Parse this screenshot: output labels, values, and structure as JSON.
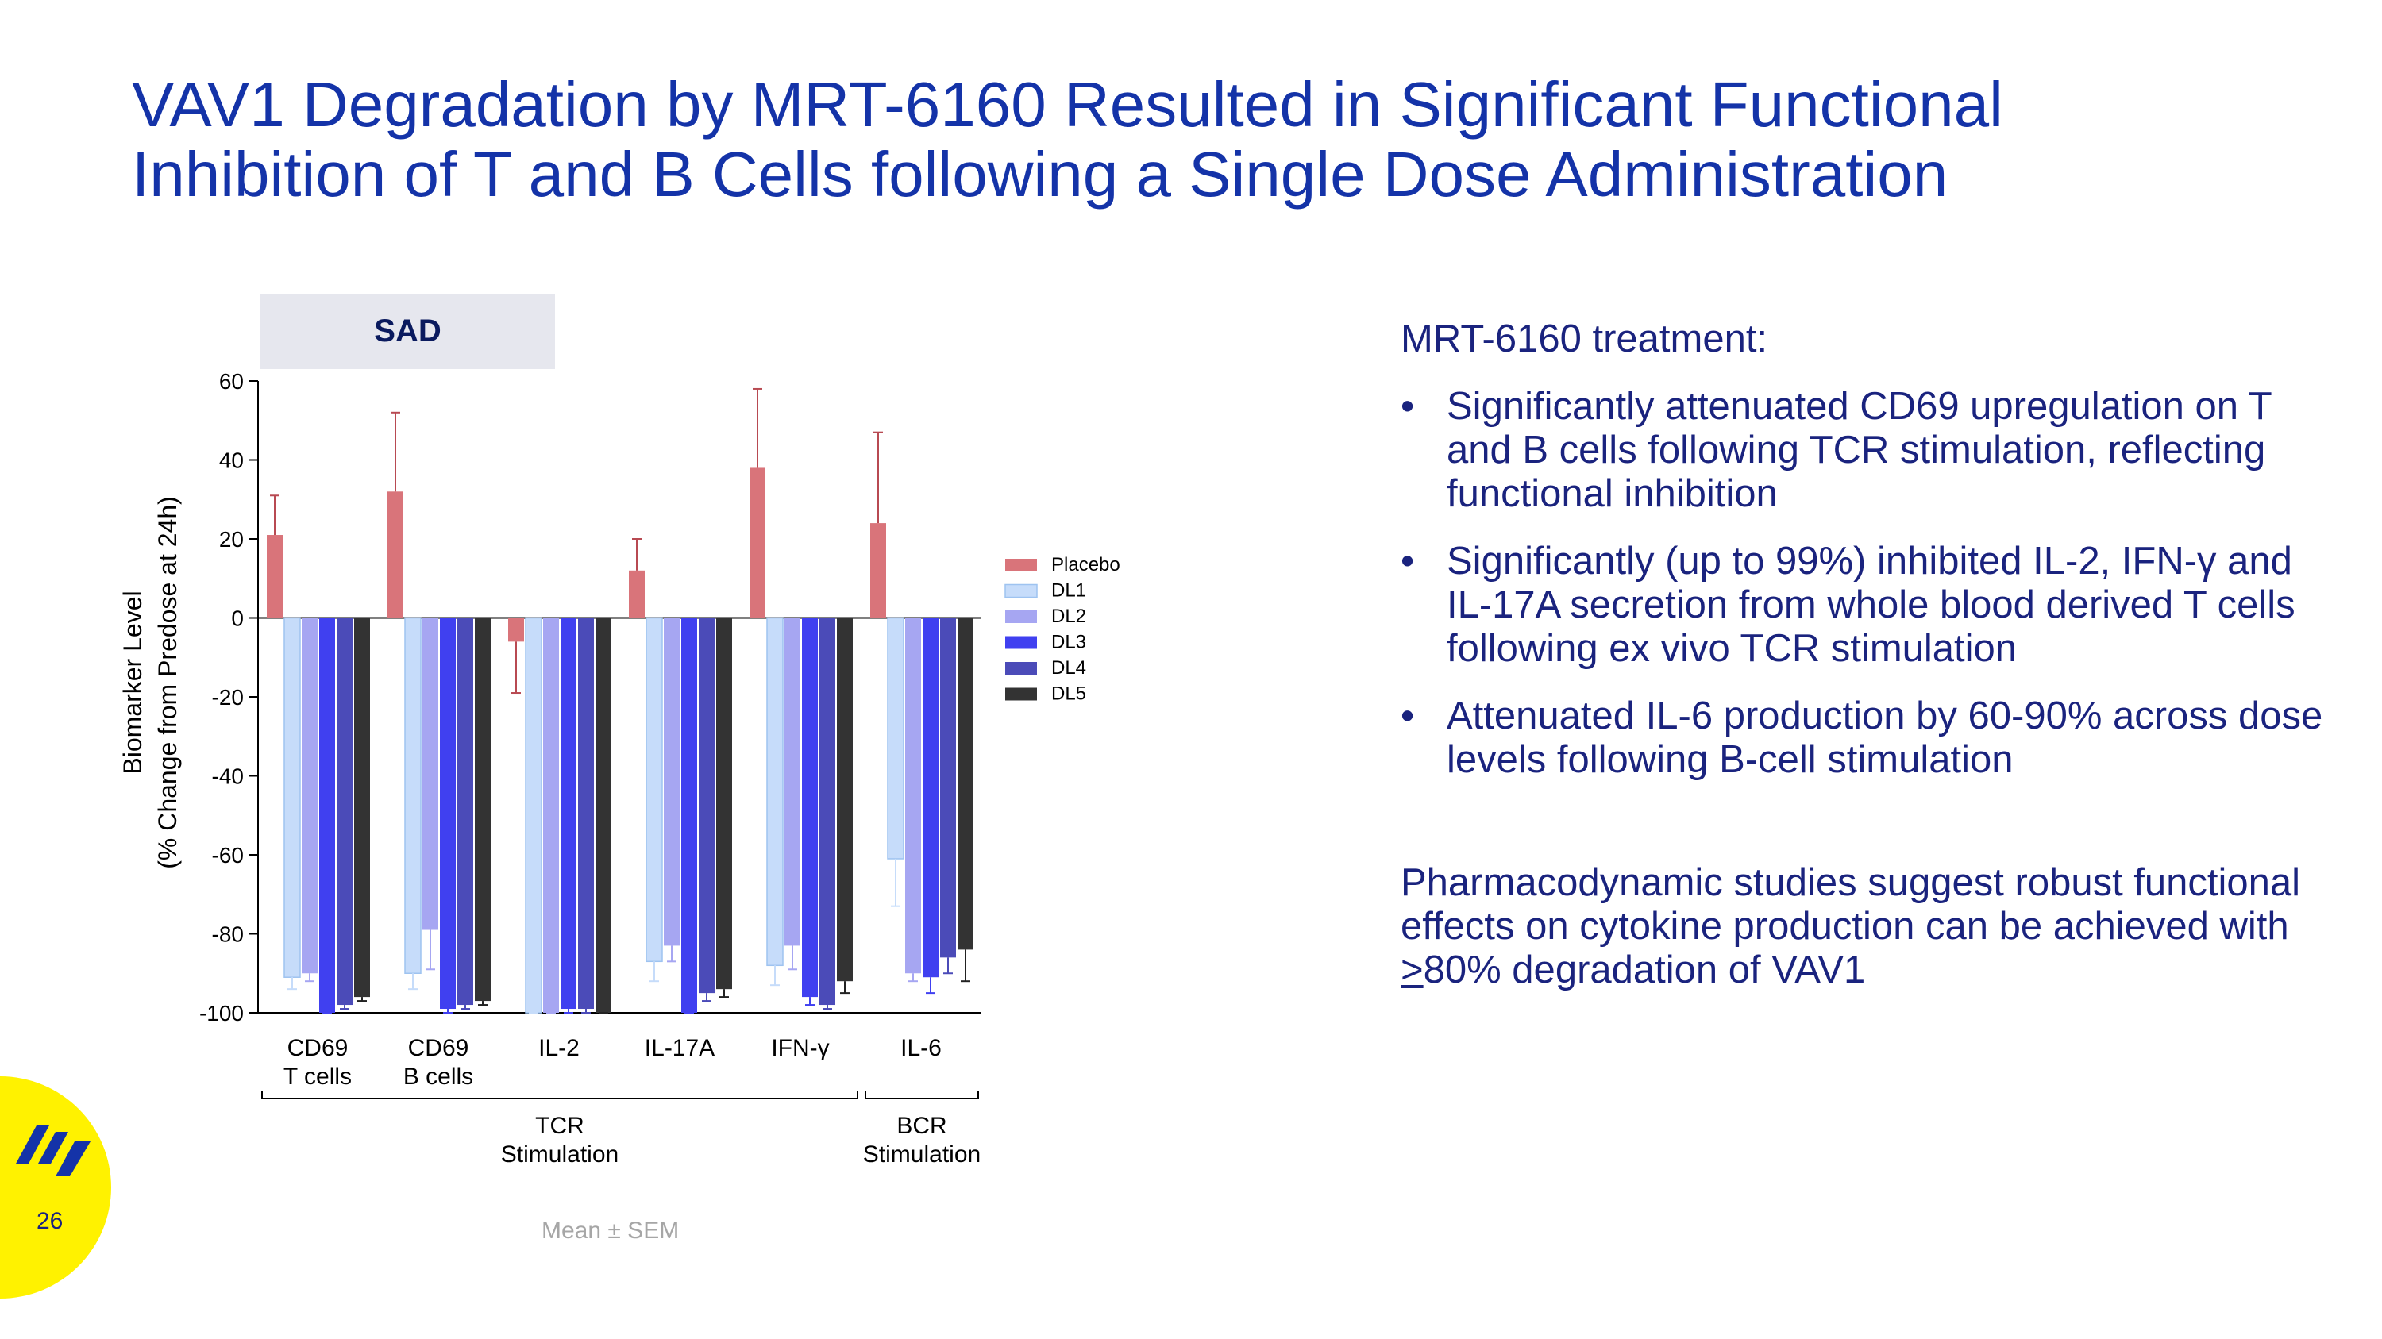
{
  "slide": {
    "title_line1": "VAV1 Degradation by MRT-6160 Resulted in Significant Functional",
    "title_line2": "Inhibition of T and B Cells following a Single Dose Administration",
    "page_number": "26",
    "footnote": "Mean ± SEM"
  },
  "right_panel": {
    "lead": "MRT-6160 treatment:",
    "bullets": [
      "Significantly attenuated CD69 upregulation on T and B cells following TCR stimulation, reflecting functional inhibition",
      "Significantly (up to 99%) inhibited IL-2, IFN-γ and IL-17A secretion from whole blood derived T cells following ex vivo TCR stimulation",
      "Attenuated IL-6 production by 60-90% across dose levels following B-cell stimulation"
    ],
    "closing_before": "Pharmacodynamic studies suggest robust functional effects on cytokine production can be achieved with ",
    "closing_underlined": ">",
    "closing_after": "80% degradation of VAV1"
  },
  "chart_data": {
    "type": "bar",
    "panel_label": "SAD",
    "ylabel_line1": "Biomarker Level",
    "ylabel_line2": "(% Change from Predose at 24h)",
    "ylim": [
      -100,
      60
    ],
    "yticks": [
      60,
      40,
      20,
      0,
      -20,
      -40,
      -60,
      -80,
      -100
    ],
    "categories": [
      {
        "line1": "CD69",
        "line2": "T cells"
      },
      {
        "line1": "CD69",
        "line2": "B cells"
      },
      {
        "line1": "IL-2",
        "line2": ""
      },
      {
        "line1": "IL-17A",
        "line2": ""
      },
      {
        "line1": "IFN-γ",
        "line2": ""
      },
      {
        "line1": "IL-6",
        "line2": ""
      }
    ],
    "groups": [
      {
        "line1": "TCR",
        "line2": "Stimulation",
        "from": 0,
        "to": 4
      },
      {
        "line1": "BCR",
        "line2": "Stimulation",
        "from": 5,
        "to": 5
      }
    ],
    "series": [
      {
        "name": "Placebo",
        "color": "#d9747a",
        "values": [
          21,
          32,
          -6,
          12,
          38,
          24
        ],
        "err": [
          10,
          20,
          13,
          8,
          20,
          23
        ]
      },
      {
        "name": "DL1",
        "color": "#c6dcfa",
        "values": [
          -91,
          -90,
          -100,
          -87,
          -88,
          -61
        ],
        "err": [
          3,
          4,
          1,
          5,
          5,
          12
        ]
      },
      {
        "name": "DL2",
        "color": "#a6a6f2",
        "values": [
          -90,
          -79,
          -100,
          -83,
          -83,
          -90
        ],
        "err": [
          2,
          10,
          1,
          4,
          6,
          2
        ]
      },
      {
        "name": "DL3",
        "color": "#4040f0",
        "values": [
          -100,
          -99,
          -99,
          -100,
          -96,
          -91
        ],
        "err": [
          1,
          1,
          1,
          1,
          2,
          4
        ]
      },
      {
        "name": "DL4",
        "color": "#4b4bb8",
        "values": [
          -98,
          -98,
          -99,
          -95,
          -98,
          -86
        ],
        "err": [
          1,
          1,
          1,
          2,
          1,
          4
        ]
      },
      {
        "name": "DL5",
        "color": "#333333",
        "values": [
          -96,
          -97,
          -100,
          -94,
          -92,
          -84
        ],
        "err": [
          1,
          1,
          1,
          2,
          3,
          8
        ]
      }
    ],
    "legend_position": "right",
    "colors": {
      "axis": "#000000",
      "title": "#1433a8",
      "text": "#1a237e"
    }
  }
}
